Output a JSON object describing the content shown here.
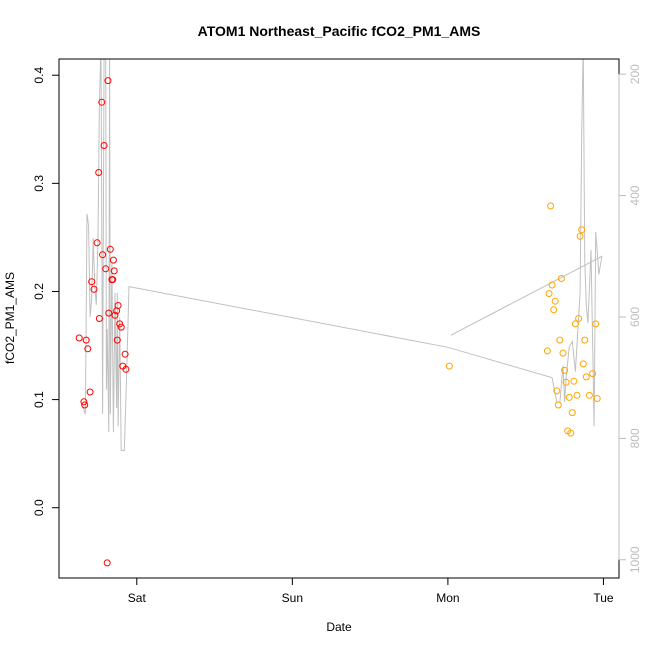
{
  "chart_data": {
    "type": "scatter",
    "title": "ATOM1 Northeast_Pacific fCO2_PM1_AMS",
    "xlabel": "Date",
    "ylabel": "fCO2_PM1_AMS",
    "x_tick_labels": [
      "Sat",
      "Sun",
      "Mon",
      "Tue"
    ],
    "x_tick_days": [
      1,
      2,
      3,
      4
    ],
    "xlim_days": [
      0.5,
      4.1
    ],
    "ylim": [
      -0.065,
      0.415
    ],
    "y_ticks": [
      0.0,
      0.1,
      0.2,
      0.3,
      0.4
    ],
    "y_tick_labels": [
      "0.0",
      "0.1",
      "0.2",
      "0.3",
      "0.4"
    ],
    "y2_ticks": [
      200,
      400,
      600,
      800,
      1000
    ],
    "y2_tick_labels": [
      "200",
      "400",
      "600",
      "800",
      "1000"
    ],
    "y2lim": [
      1030,
      175
    ],
    "y2_reversed": true,
    "grid": false,
    "colors": {
      "red": "#ff0000",
      "orange": "#ffa500",
      "line": "#c0c0c0",
      "axis": "#000000",
      "right_axis": "#bdbdbd"
    },
    "series": [
      {
        "color": "red",
        "marker": "open-circle",
        "points": [
          [
            0.63,
            0.157
          ],
          [
            0.66,
            0.098
          ],
          [
            0.665,
            0.095
          ],
          [
            0.675,
            0.155
          ],
          [
            0.685,
            0.147
          ],
          [
            0.7,
            0.107
          ],
          [
            0.71,
            0.209
          ],
          [
            0.725,
            0.202
          ],
          [
            0.745,
            0.245
          ],
          [
            0.755,
            0.31
          ],
          [
            0.76,
            0.175
          ],
          [
            0.775,
            0.375
          ],
          [
            0.78,
            0.234
          ],
          [
            0.79,
            0.335
          ],
          [
            0.8,
            0.221
          ],
          [
            0.81,
            -0.051
          ],
          [
            0.815,
            0.395
          ],
          [
            0.82,
            0.18
          ],
          [
            0.83,
            0.239
          ],
          [
            0.84,
            0.211
          ],
          [
            0.845,
            0.211
          ],
          [
            0.85,
            0.229
          ],
          [
            0.855,
            0.219
          ],
          [
            0.86,
            0.178
          ],
          [
            0.87,
            0.182
          ],
          [
            0.875,
            0.155
          ],
          [
            0.88,
            0.187
          ],
          [
            0.89,
            0.17
          ],
          [
            0.9,
            0.167
          ],
          [
            0.91,
            0.131
          ],
          [
            0.925,
            0.142
          ],
          [
            0.93,
            0.128
          ]
        ]
      },
      {
        "color": "orange",
        "marker": "open-circle",
        "points": [
          [
            3.01,
            0.131
          ],
          [
            3.64,
            0.145
          ],
          [
            3.65,
            0.198
          ],
          [
            3.66,
            0.279
          ],
          [
            3.67,
            0.206
          ],
          [
            3.68,
            0.183
          ],
          [
            3.69,
            0.191
          ],
          [
            3.7,
            0.108
          ],
          [
            3.71,
            0.095
          ],
          [
            3.72,
            0.155
          ],
          [
            3.73,
            0.212
          ],
          [
            3.74,
            0.143
          ],
          [
            3.75,
            0.127
          ],
          [
            3.76,
            0.116
          ],
          [
            3.77,
            0.071
          ],
          [
            3.78,
            0.102
          ],
          [
            3.79,
            0.069
          ],
          [
            3.8,
            0.088
          ],
          [
            3.81,
            0.117
          ],
          [
            3.82,
            0.17
          ],
          [
            3.83,
            0.104
          ],
          [
            3.84,
            0.175
          ],
          [
            3.85,
            0.251
          ],
          [
            3.86,
            0.257
          ],
          [
            3.87,
            0.133
          ],
          [
            3.88,
            0.155
          ],
          [
            3.89,
            0.121
          ],
          [
            3.91,
            0.104
          ],
          [
            3.93,
            0.124
          ],
          [
            3.95,
            0.17
          ],
          [
            3.96,
            0.101
          ]
        ]
      }
    ],
    "secondary_line": {
      "color": "line",
      "axis": "right",
      "points": [
        [
          0.655,
          750
        ],
        [
          0.67,
          760
        ],
        [
          0.68,
          430
        ],
        [
          0.69,
          450
        ],
        [
          0.7,
          600
        ],
        [
          0.71,
          570
        ],
        [
          0.72,
          470
        ],
        [
          0.73,
          550
        ],
        [
          0.74,
          580
        ],
        [
          0.75,
          480
        ],
        [
          0.76,
          250
        ],
        [
          0.77,
          150
        ],
        [
          0.78,
          760
        ],
        [
          0.79,
          150
        ],
        [
          0.8,
          150
        ],
        [
          0.805,
          720
        ],
        [
          0.81,
          620
        ],
        [
          0.82,
          790
        ],
        [
          0.825,
          150
        ],
        [
          0.83,
          760
        ],
        [
          0.84,
          510
        ],
        [
          0.85,
          790
        ],
        [
          0.86,
          560
        ],
        [
          0.87,
          750
        ],
        [
          0.875,
          560
        ],
        [
          0.88,
          780
        ],
        [
          0.89,
          600
        ],
        [
          0.9,
          820
        ],
        [
          0.92,
          820
        ],
        [
          0.935,
          690
        ],
        [
          0.95,
          550
        ],
        [
          3.0,
          650
        ],
        [
          3.67,
          700
        ],
        [
          3.7,
          740
        ],
        [
          3.72,
          740
        ],
        [
          3.74,
          680
        ],
        [
          3.75,
          740
        ],
        [
          3.76,
          700
        ],
        [
          3.78,
          650
        ],
        [
          3.8,
          640
        ],
        [
          3.82,
          690
        ],
        [
          3.85,
          560
        ],
        [
          3.86,
          300
        ],
        [
          3.87,
          150
        ],
        [
          3.88,
          510
        ],
        [
          3.89,
          580
        ],
        [
          3.9,
          610
        ],
        [
          3.92,
          490
        ],
        [
          3.94,
          780
        ],
        [
          3.95,
          460
        ],
        [
          3.96,
          490
        ],
        [
          3.97,
          530
        ],
        [
          3.99,
          500
        ],
        [
          3.02,
          630
        ]
      ]
    }
  }
}
